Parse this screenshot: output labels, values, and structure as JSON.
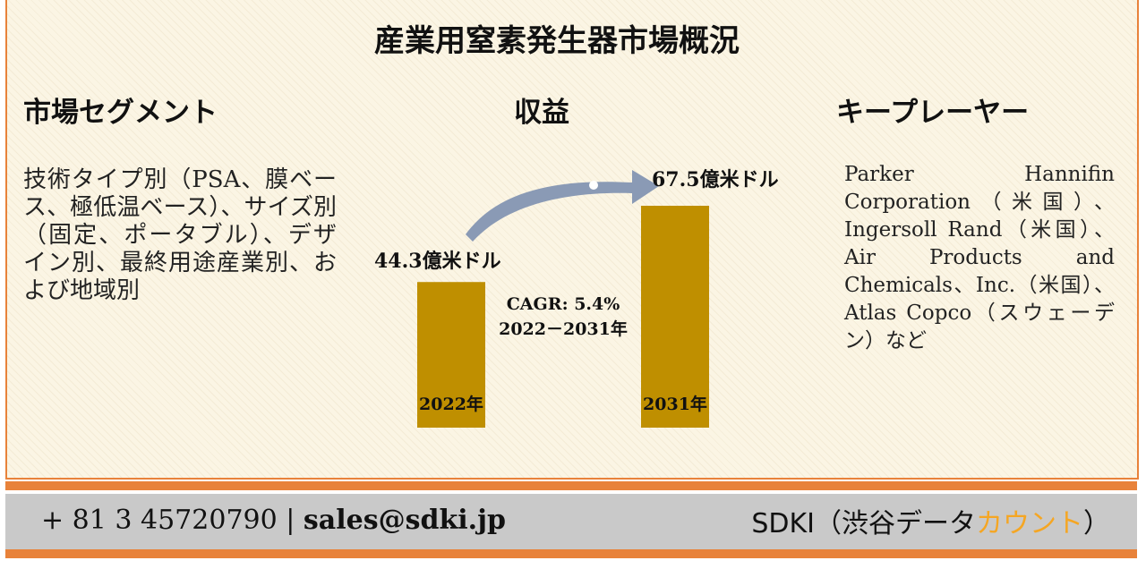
{
  "title": "産業用窒素発生器市場概況",
  "segments": {
    "heading": "市場セグメント",
    "text": "技術タイプ別（PSA、膜ベース、極低温ベース）、サイズ別（固定、ポータブル）、デザイン別、最終用途産業別、および地域別"
  },
  "revenue": {
    "heading": "収益"
  },
  "players": {
    "heading": "キープレーヤー",
    "lines": [
      "Parker Hannifin",
      "Corporation（米国）、",
      "Ingersoll Rand（米国）、",
      "Air Products and",
      "Chemicals、Inc.（米国）、",
      "Atlas Copco（スウェーデ",
      "ン）など"
    ]
  },
  "chart_data": {
    "type": "bar",
    "categories": [
      "2022年",
      "2031年"
    ],
    "values": [
      44.3,
      67.5
    ],
    "value_labels": [
      "44.3億米ドル",
      "67.5億米ドル"
    ],
    "annotation": [
      "CAGR: 5.4%",
      "2022－2031年"
    ],
    "bar_color": "#bf8f00",
    "arrow_color": "#8a9ab5"
  },
  "footer": {
    "phone": "+ 81 3 45720790",
    "separator": "|",
    "email": "sales@sdki.jp",
    "brand_main": "SDKI（渋谷データ",
    "brand_accent": "カウント",
    "brand_end": "）",
    "accent_color": "#f5a623"
  }
}
